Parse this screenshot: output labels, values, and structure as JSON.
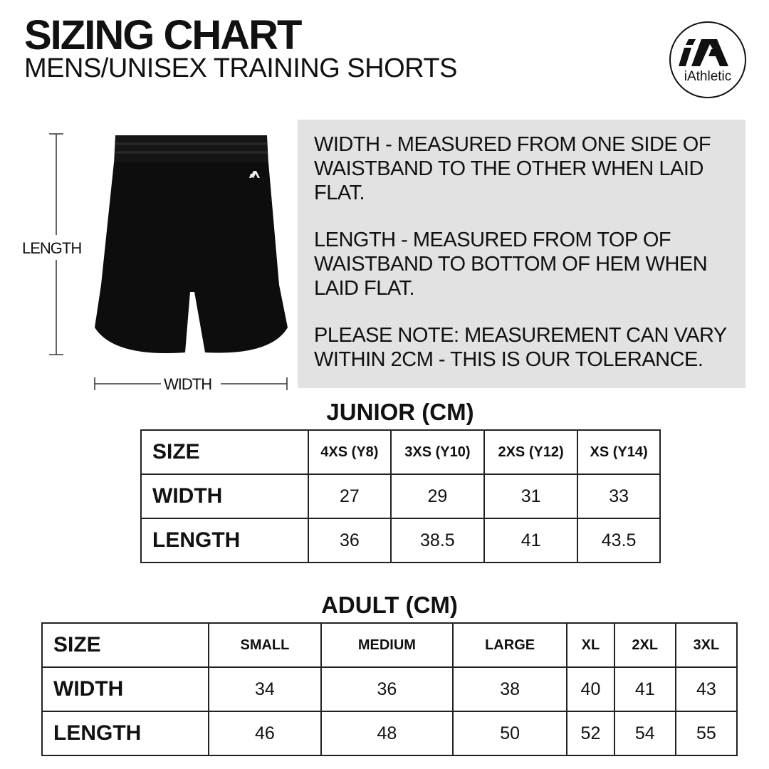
{
  "header": {
    "title": "SIZING CHART",
    "subtitle": "MENS/UNISEX TRAINING SHORTS"
  },
  "logo": {
    "brand": "iAthletic",
    "mark": "iA"
  },
  "diagram": {
    "length_label": "LENGTH",
    "width_label": "WIDTH"
  },
  "info": {
    "width_note": "WIDTH - MEASURED FROM ONE SIDE OF WAISTBAND TO THE OTHER WHEN LAID FLAT.",
    "length_note": "LENGTH - MEASURED FROM TOP OF WAISTBAND TO BOTTOM OF HEM WHEN LAID FLAT.",
    "tolerance_note": "PLEASE NOTE: MEASUREMENT CAN VARY WITHIN 2CM - THIS IS OUR TOLERANCE."
  },
  "junior": {
    "title": "JUNIOR (CM)",
    "header": [
      "SIZE",
      "4XS (Y8)",
      "3XS (Y10)",
      "2XS (Y12)",
      "XS (Y14)"
    ],
    "rows": [
      [
        "WIDTH",
        "27",
        "29",
        "31",
        "33"
      ],
      [
        "LENGTH",
        "36",
        "38.5",
        "41",
        "43.5"
      ]
    ]
  },
  "adult": {
    "title": "ADULT (CM)",
    "header": [
      "SIZE",
      "SMALL",
      "MEDIUM",
      "LARGE",
      "XL",
      "2XL",
      "3XL"
    ],
    "rows": [
      [
        "WIDTH",
        "34",
        "36",
        "38",
        "40",
        "41",
        "43"
      ],
      [
        "LENGTH",
        "46",
        "48",
        "50",
        "52",
        "54",
        "55"
      ]
    ]
  }
}
